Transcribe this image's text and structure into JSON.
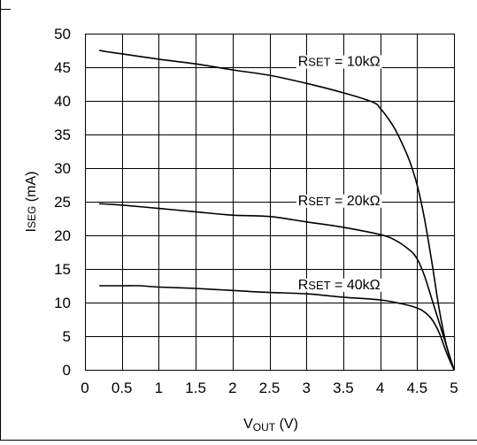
{
  "chart_data": {
    "type": "line",
    "title": "",
    "xlabel": {
      "main": "V",
      "sub": "OUT",
      "unit": "(V)"
    },
    "ylabel": {
      "main": "I",
      "sub": "SEG",
      "unit": "(mA)"
    },
    "xlim": [
      0,
      5
    ],
    "ylim": [
      0,
      50
    ],
    "x_ticks": [
      0,
      0.5,
      1,
      1.5,
      2,
      2.5,
      3,
      3.5,
      4,
      4.5,
      5
    ],
    "x_tick_labels": [
      "0",
      "0.5",
      "1",
      "1.5",
      "2",
      "2.5",
      "3",
      "3.5",
      "4",
      "4.5",
      "5"
    ],
    "y_ticks": [
      0,
      5,
      10,
      15,
      20,
      25,
      30,
      35,
      40,
      45,
      50
    ],
    "y_tick_labels": [
      "0",
      "5",
      "10",
      "15",
      "20",
      "25",
      "30",
      "35",
      "40",
      "45",
      "50"
    ],
    "grid": true,
    "series": [
      {
        "name": "RSET = 10kΩ",
        "label": {
          "main": "R",
          "sub": "SET",
          "value": " = 10kΩ"
        },
        "x": [
          0.2,
          0.3,
          0.5,
          1.0,
          1.5,
          2.0,
          2.5,
          3.0,
          3.5,
          3.9,
          4.0,
          4.1,
          4.2,
          4.3,
          4.4,
          4.5,
          4.6,
          4.7,
          4.8,
          4.9,
          5.0
        ],
        "y": [
          47.5,
          47.3,
          47.0,
          46.2,
          45.5,
          44.6,
          43.8,
          42.6,
          41.2,
          39.8,
          38.9,
          37.5,
          35.8,
          33.6,
          31.0,
          27.5,
          22.5,
          16.0,
          9.0,
          3.5,
          0
        ]
      },
      {
        "name": "RSET = 20kΩ",
        "label": {
          "main": "R",
          "sub": "SET",
          "value": " = 20kΩ"
        },
        "x": [
          0.2,
          0.5,
          1.0,
          1.5,
          2.0,
          2.5,
          3.0,
          3.5,
          4.0,
          4.2,
          4.4,
          4.5,
          4.6,
          4.7,
          4.8,
          4.9,
          5.0
        ],
        "y": [
          24.7,
          24.5,
          24.0,
          23.5,
          23.0,
          22.8,
          22.0,
          21.2,
          20.1,
          19.3,
          17.8,
          16.5,
          14.0,
          10.5,
          7.0,
          3.5,
          0
        ]
      },
      {
        "name": "RSET = 40kΩ",
        "label": {
          "main": "R",
          "sub": "SET",
          "value": " = 40kΩ"
        },
        "x": [
          0.2,
          0.5,
          0.75,
          1.0,
          1.5,
          2.0,
          2.5,
          3.0,
          3.5,
          4.0,
          4.3,
          4.5,
          4.6,
          4.7,
          4.8,
          4.9,
          5.0
        ],
        "y": [
          12.5,
          12.5,
          12.5,
          12.3,
          12.1,
          11.8,
          11.5,
          11.3,
          10.8,
          10.4,
          9.8,
          9.2,
          8.6,
          7.5,
          5.5,
          2.5,
          0
        ]
      }
    ]
  }
}
